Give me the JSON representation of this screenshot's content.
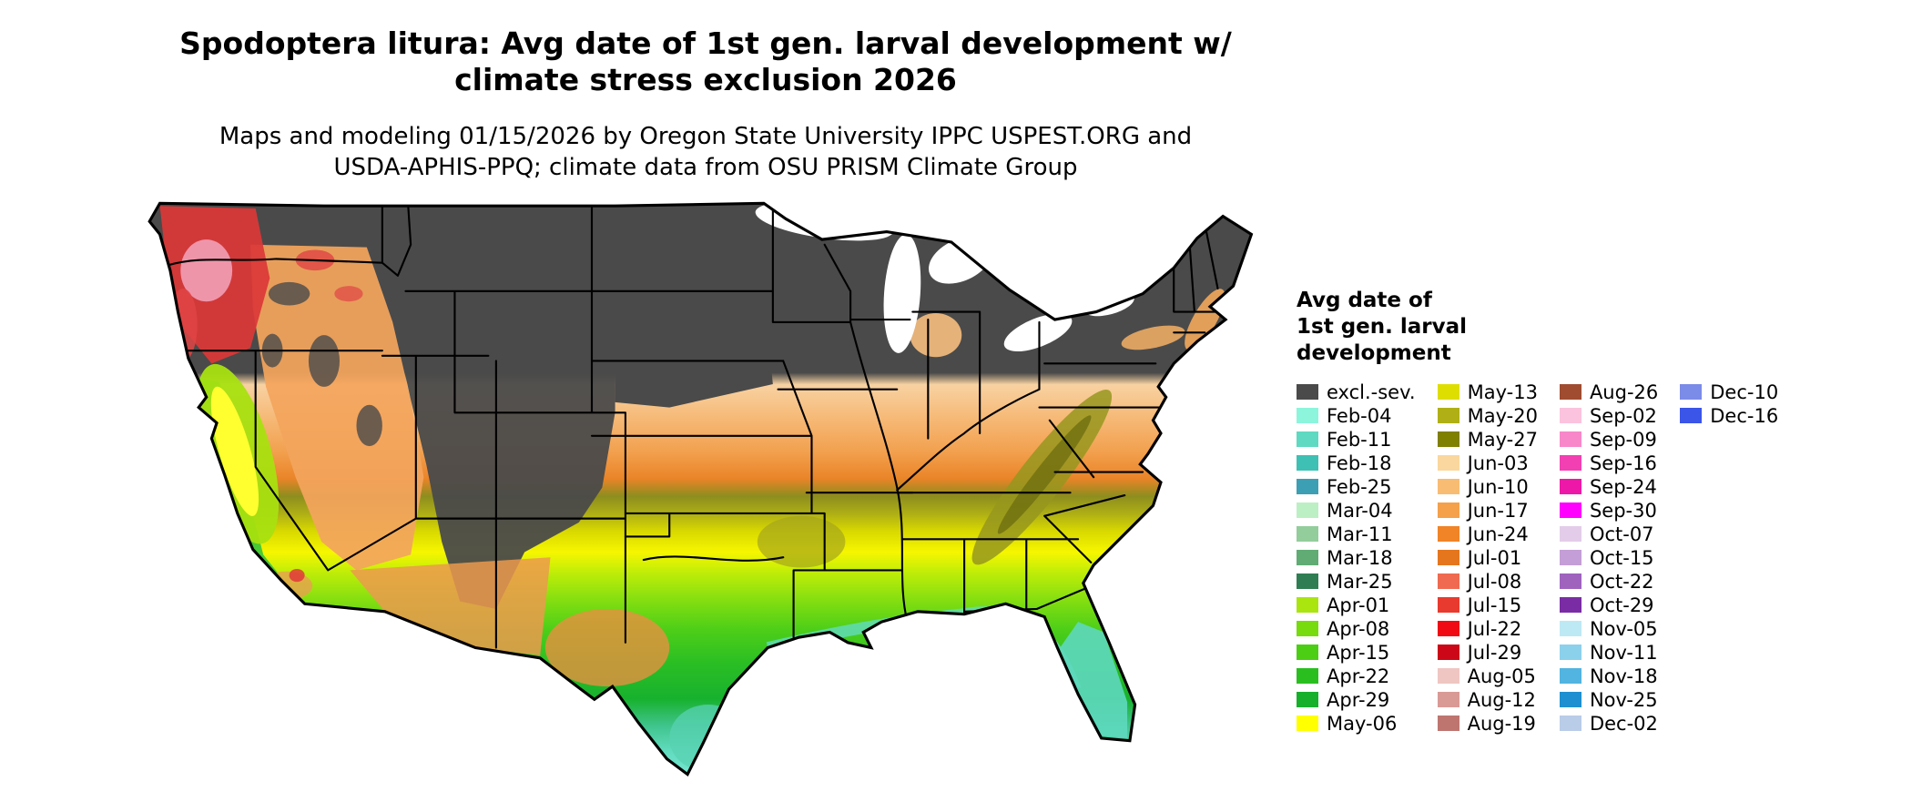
{
  "title": {
    "line1": "Spodoptera litura: Avg date of 1st gen. larval development w/",
    "line2": "climate stress exclusion 2026"
  },
  "subtitle": {
    "line1": "Maps and modeling 01/15/2026 by Oregon State University IPPC USPEST.ORG and",
    "line2": "USDA-APHIS-PPQ; climate data from OSU PRISM Climate Group"
  },
  "legend": {
    "title_line1": "Avg date of",
    "title_line2": "1st gen. larval",
    "title_line3": "development",
    "columns": [
      [
        {
          "label": "excl.-sev.",
          "color": "#4A4A4A"
        },
        {
          "label": "Feb-04",
          "color": "#8CF5DC"
        },
        {
          "label": "Feb-11",
          "color": "#5FD9C1"
        },
        {
          "label": "Feb-18",
          "color": "#3FC0B4"
        },
        {
          "label": "Feb-25",
          "color": "#3D9FB4"
        },
        {
          "label": "Mar-04",
          "color": "#BCEFC4"
        },
        {
          "label": "Mar-11",
          "color": "#93CD9B"
        },
        {
          "label": "Mar-18",
          "color": "#60AC74"
        },
        {
          "label": "Mar-25",
          "color": "#2F7E53"
        },
        {
          "label": "Apr-01",
          "color": "#AAE510"
        },
        {
          "label": "Apr-08",
          "color": "#77DB0E"
        },
        {
          "label": "Apr-15",
          "color": "#4CCE14"
        },
        {
          "label": "Apr-22",
          "color": "#2ABF1F"
        },
        {
          "label": "Apr-29",
          "color": "#16B02B"
        },
        {
          "label": "May-06",
          "color": "#FFFF00"
        }
      ],
      [
        {
          "label": "May-13",
          "color": "#DEDE00"
        },
        {
          "label": "May-20",
          "color": "#B0B016"
        },
        {
          "label": "May-27",
          "color": "#7F7F00"
        },
        {
          "label": "Jun-03",
          "color": "#FAD79E"
        },
        {
          "label": "Jun-10",
          "color": "#F8BC72"
        },
        {
          "label": "Jun-17",
          "color": "#F5A04A"
        },
        {
          "label": "Jun-24",
          "color": "#F08426"
        },
        {
          "label": "Jul-01",
          "color": "#E5761E"
        },
        {
          "label": "Jul-08",
          "color": "#EF6A50"
        },
        {
          "label": "Jul-15",
          "color": "#E83A2E"
        },
        {
          "label": "Jul-22",
          "color": "#F00A14"
        },
        {
          "label": "Jul-29",
          "color": "#CC0818"
        },
        {
          "label": "Aug-05",
          "color": "#EFC6C2"
        },
        {
          "label": "Aug-12",
          "color": "#D99A96"
        },
        {
          "label": "Aug-19",
          "color": "#BE7570"
        }
      ],
      [
        {
          "label": "Aug-26",
          "color": "#A04C30"
        },
        {
          "label": "Sep-02",
          "color": "#FBC3DD"
        },
        {
          "label": "Sep-09",
          "color": "#F787C9"
        },
        {
          "label": "Sep-16",
          "color": "#F23FB2"
        },
        {
          "label": "Sep-24",
          "color": "#EE18A8"
        },
        {
          "label": "Sep-30",
          "color": "#FF00FF"
        },
        {
          "label": "Oct-07",
          "color": "#E3CCE9"
        },
        {
          "label": "Oct-15",
          "color": "#C49ED6"
        },
        {
          "label": "Oct-22",
          "color": "#9F63BE"
        },
        {
          "label": "Oct-29",
          "color": "#7A2CA5"
        },
        {
          "label": "Nov-05",
          "color": "#BDE9F5"
        },
        {
          "label": "Nov-11",
          "color": "#8CD1EC"
        },
        {
          "label": "Nov-18",
          "color": "#52B4E0"
        },
        {
          "label": "Nov-25",
          "color": "#1E8FD0"
        },
        {
          "label": "Dec-02",
          "color": "#B9CCE8"
        }
      ],
      [
        {
          "label": "Dec-10",
          "color": "#7B8BE8"
        },
        {
          "label": "Dec-16",
          "color": "#3A55E8"
        }
      ]
    ]
  },
  "map_data": {
    "type": "choropleth",
    "region": "Continental United States",
    "colorbar_title": "Avg date of 1st gen. larval development",
    "gradient_stops": [
      {
        "offset": 0.0,
        "color": "#4A4A4A"
      },
      {
        "offset": 0.295,
        "color": "#4A4A4A"
      },
      {
        "offset": 0.315,
        "color": "#F8D2A2"
      },
      {
        "offset": 0.37,
        "color": "#F6BA78"
      },
      {
        "offset": 0.43,
        "color": "#F2A04E"
      },
      {
        "offset": 0.475,
        "color": "#EA8428"
      },
      {
        "offset": 0.505,
        "color": "#8D8D1E"
      },
      {
        "offset": 0.535,
        "color": "#AFAF16"
      },
      {
        "offset": 0.565,
        "color": "#D9D900"
      },
      {
        "offset": 0.6,
        "color": "#F6F600"
      },
      {
        "offset": 0.635,
        "color": "#BFED08"
      },
      {
        "offset": 0.68,
        "color": "#86DF10"
      },
      {
        "offset": 0.73,
        "color": "#4FCF18"
      },
      {
        "offset": 0.79,
        "color": "#2ABE24"
      },
      {
        "offset": 0.85,
        "color": "#18B12E"
      },
      {
        "offset": 0.895,
        "color": "#3FC48C"
      },
      {
        "offset": 0.94,
        "color": "#62DCC0"
      },
      {
        "offset": 1.0,
        "color": "#7FEBD5"
      }
    ],
    "overlays": {
      "pnw_red": "#DC3838",
      "pnw_pink": "#F4A6BE",
      "or_coast_red": "#E04444",
      "n_rockies_red": "#E04444",
      "great_basin_orange": "#F3A55C",
      "basin_gray": "#4A4A4A",
      "rockies_gray": "#4A4A4A",
      "nebraska_gray": "#4A4A4A",
      "sw_desert_orange": "#EC9A4E",
      "west_texas_orange": "#E89040",
      "central_valley_yellow": "#FFFF30",
      "central_valley_rim": "#A8E010",
      "ca_coast_green": "#35C53A",
      "socal_orange": "#E8A050",
      "socal_red": "#E03838",
      "ozark_olive": "#A5A51C",
      "appalachia_olive": "#97971E",
      "appalachia_core": "#6F6F10",
      "michigan_peach": "#F6BE7E",
      "upstate_ny_orange": "#F4B065",
      "ne_coast_orange": "#F2A85C",
      "florida_teal": "#5ED8BE",
      "south_texas_teal": "#58D2B2",
      "gulf_fringe_teal": "#62DCC0",
      "water_white": "#FFFFFF",
      "border_black": "#000000"
    }
  }
}
